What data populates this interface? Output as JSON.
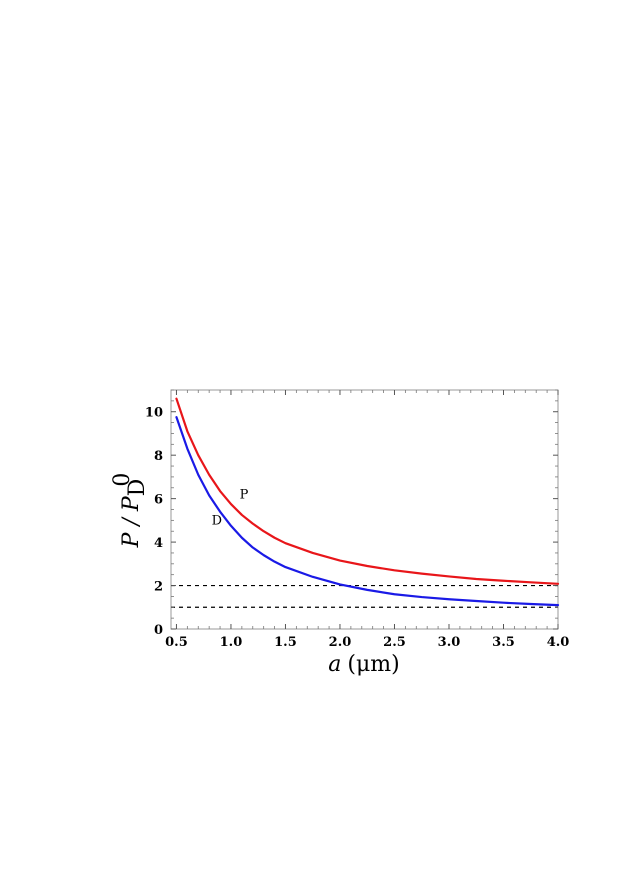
{
  "chart_data": {
    "type": "line",
    "title": "",
    "xlabel": {
      "italic": "a",
      "unit": "(μm)"
    },
    "ylabel": {
      "main": "P / P",
      "sub": "D",
      "sup": "0"
    },
    "xlim": [
      0.45,
      4.0
    ],
    "ylim": [
      0,
      11
    ],
    "xticks": [
      "0.5",
      "1.0",
      "1.5",
      "2.0",
      "2.5",
      "3.0",
      "3.5",
      "4.0"
    ],
    "xtick_values": [
      0.5,
      1.0,
      1.5,
      2.0,
      2.5,
      3.0,
      3.5,
      4.0
    ],
    "yticks": [
      "0",
      "2",
      "4",
      "6",
      "8",
      "10"
    ],
    "ytick_values": [
      0,
      2,
      4,
      6,
      8,
      10
    ],
    "grid": false,
    "reference_lines": [
      {
        "y": 1,
        "style": "dashed",
        "color": "#000000"
      },
      {
        "y": 2,
        "style": "dashed",
        "color": "#000000"
      }
    ],
    "series": [
      {
        "label": "P",
        "color": "#e8161a",
        "x": [
          0.5,
          0.6,
          0.7,
          0.8,
          0.9,
          1.0,
          1.1,
          1.2,
          1.3,
          1.4,
          1.5,
          1.75,
          2.0,
          2.25,
          2.5,
          2.75,
          3.0,
          3.25,
          3.5,
          3.75,
          4.0
        ],
        "y": [
          10.6,
          9.1,
          8.0,
          7.1,
          6.35,
          5.75,
          5.25,
          4.85,
          4.5,
          4.2,
          3.95,
          3.5,
          3.15,
          2.9,
          2.7,
          2.55,
          2.42,
          2.3,
          2.22,
          2.15,
          2.08
        ]
      },
      {
        "label": "D",
        "color": "#1a1ae6",
        "x": [
          0.5,
          0.6,
          0.7,
          0.8,
          0.9,
          1.0,
          1.1,
          1.2,
          1.3,
          1.4,
          1.5,
          1.75,
          2.0,
          2.25,
          2.5,
          2.75,
          3.0,
          3.25,
          3.5,
          3.75,
          4.0
        ],
        "y": [
          9.75,
          8.3,
          7.1,
          6.15,
          5.4,
          4.75,
          4.2,
          3.75,
          3.4,
          3.1,
          2.85,
          2.4,
          2.05,
          1.8,
          1.6,
          1.47,
          1.37,
          1.29,
          1.21,
          1.15,
          1.1
        ]
      }
    ],
    "annotations": [
      {
        "text": "P",
        "x": 1.12,
        "y": 6.0
      },
      {
        "text": "D",
        "x": 0.87,
        "y": 4.8
      }
    ]
  }
}
